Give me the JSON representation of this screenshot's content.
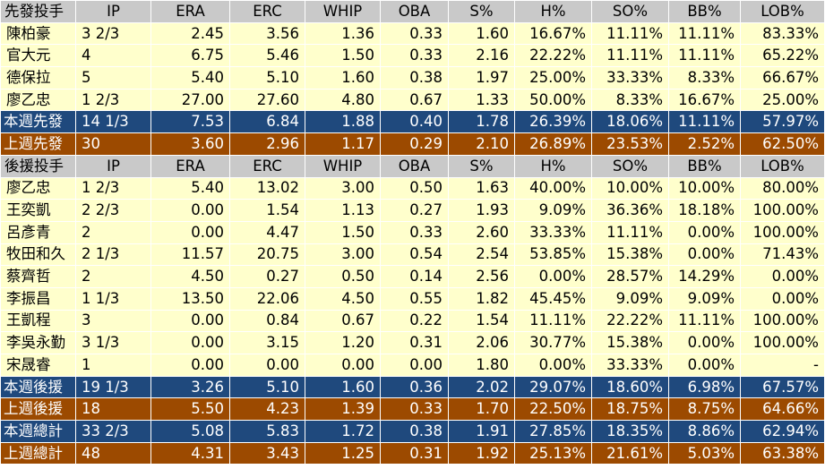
{
  "colors": {
    "header_bg": "#c9c9c9",
    "data_bg": "#ffffcc",
    "this_week_bg": "#1f497d",
    "last_week_bg": "#9c4a00"
  },
  "starters": {
    "header": [
      "先發投手",
      "IP",
      "ERA",
      "ERC",
      "WHIP",
      "OBA",
      "S%",
      "H%",
      "SO%",
      "BB%",
      "LOB%"
    ],
    "rows": [
      [
        "陳柏豪",
        "3 2/3",
        "2.45",
        "3.56",
        "1.36",
        "0.33",
        "1.60",
        "16.67%",
        "11.11%",
        "11.11%",
        "83.33%"
      ],
      [
        "官大元",
        "4",
        "6.75",
        "5.46",
        "1.50",
        "0.33",
        "2.16",
        "22.22%",
        "11.11%",
        "11.11%",
        "65.22%"
      ],
      [
        "德保拉",
        "5",
        "5.40",
        "5.10",
        "1.60",
        "0.38",
        "1.97",
        "25.00%",
        "33.33%",
        "8.33%",
        "66.67%"
      ],
      [
        "廖乙忠",
        "1 2/3",
        "27.00",
        "27.60",
        "4.80",
        "0.67",
        "1.33",
        "50.00%",
        "8.33%",
        "16.67%",
        "25.00%"
      ]
    ],
    "this_week": [
      "本週先發",
      "14 1/3",
      "7.53",
      "6.84",
      "1.88",
      "0.40",
      "1.78",
      "26.39%",
      "18.06%",
      "11.11%",
      "57.97%"
    ],
    "last_week": [
      "上週先發",
      "30",
      "3.60",
      "2.96",
      "1.17",
      "0.29",
      "2.10",
      "26.89%",
      "23.53%",
      "2.52%",
      "62.50%"
    ]
  },
  "relievers": {
    "header": [
      "後援投手",
      "IP",
      "ERA",
      "ERC",
      "WHIP",
      "OBA",
      "S%",
      "H%",
      "SO%",
      "BB%",
      "LOB%"
    ],
    "rows": [
      [
        "廖乙忠",
        "1 2/3",
        "5.40",
        "13.02",
        "3.00",
        "0.50",
        "1.63",
        "40.00%",
        "10.00%",
        "10.00%",
        "80.00%"
      ],
      [
        "王奕凱",
        "2 2/3",
        "0.00",
        "1.54",
        "1.13",
        "0.27",
        "1.93",
        "9.09%",
        "36.36%",
        "18.18%",
        "100.00%"
      ],
      [
        "呂彥青",
        "2",
        "0.00",
        "4.47",
        "1.50",
        "0.33",
        "2.60",
        "33.33%",
        "11.11%",
        "0.00%",
        "100.00%"
      ],
      [
        "牧田和久",
        "2 1/3",
        "11.57",
        "20.75",
        "3.00",
        "0.54",
        "2.54",
        "53.85%",
        "15.38%",
        "0.00%",
        "71.43%"
      ],
      [
        "蔡齊哲",
        "2",
        "4.50",
        "0.27",
        "0.50",
        "0.14",
        "2.56",
        "0.00%",
        "28.57%",
        "14.29%",
        "0.00%"
      ],
      [
        "李振昌",
        "1 1/3",
        "13.50",
        "22.06",
        "4.50",
        "0.55",
        "1.82",
        "45.45%",
        "9.09%",
        "9.09%",
        "0.00%"
      ],
      [
        "王凱程",
        "3",
        "0.00",
        "0.84",
        "0.67",
        "0.22",
        "1.54",
        "11.11%",
        "22.22%",
        "11.11%",
        "100.00%"
      ],
      [
        "李吳永勤",
        "3 1/3",
        "0.00",
        "3.15",
        "1.20",
        "0.31",
        "2.06",
        "30.77%",
        "15.38%",
        "0.00%",
        "100.00%"
      ],
      [
        "宋晟睿",
        "1",
        "0.00",
        "0.00",
        "0.00",
        "0.00",
        "1.80",
        "0.00%",
        "33.33%",
        "0.00%",
        "-"
      ]
    ],
    "this_week": [
      "本週後援",
      "19 1/3",
      "3.26",
      "5.10",
      "1.60",
      "0.36",
      "2.02",
      "29.07%",
      "18.60%",
      "6.98%",
      "67.57%"
    ],
    "last_week": [
      "上週後援",
      "18",
      "5.50",
      "4.23",
      "1.39",
      "0.33",
      "1.70",
      "22.50%",
      "18.75%",
      "8.75%",
      "64.66%"
    ]
  },
  "totals": {
    "this_week": [
      "本週總計",
      "33 2/3",
      "5.08",
      "5.83",
      "1.72",
      "0.38",
      "1.91",
      "27.85%",
      "18.35%",
      "8.86%",
      "62.94%"
    ],
    "last_week": [
      "上週總計",
      "48",
      "4.31",
      "3.43",
      "1.25",
      "0.31",
      "1.92",
      "25.13%",
      "21.61%",
      "5.03%",
      "63.38%"
    ]
  }
}
